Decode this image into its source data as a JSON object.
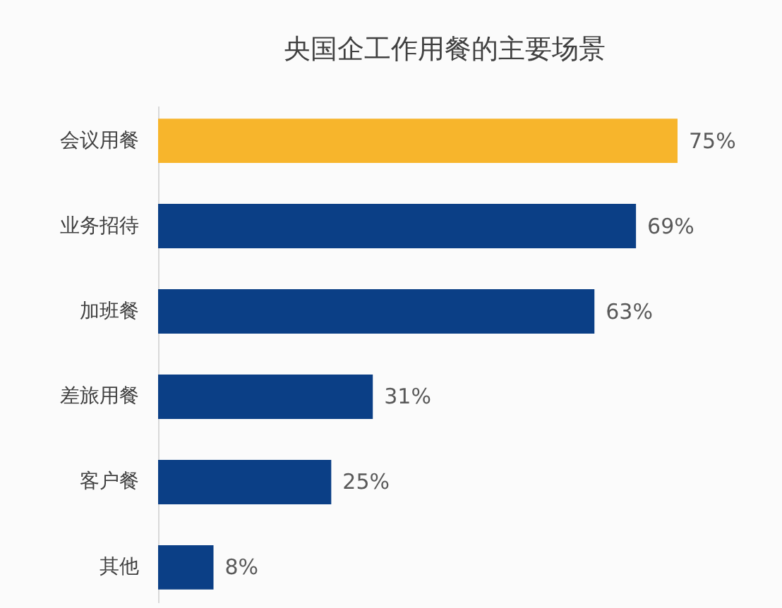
{
  "chart_data": {
    "type": "bar",
    "orientation": "horizontal",
    "title": "央国企工作用餐的主要场景",
    "categories": [
      "会议用餐",
      "业务招待",
      "加班餐",
      "差旅用餐",
      "客户餐",
      "其他"
    ],
    "values": [
      75,
      69,
      63,
      31,
      25,
      8
    ],
    "colors": [
      "#f7b52c",
      "#0b3f86",
      "#0b3f86",
      "#0b3f86",
      "#0b3f86",
      "#0b3f86"
    ],
    "value_labels": [
      "75%",
      "69%",
      "63%",
      "31%",
      "25%",
      "8%"
    ],
    "tick_labels": "y"
  }
}
